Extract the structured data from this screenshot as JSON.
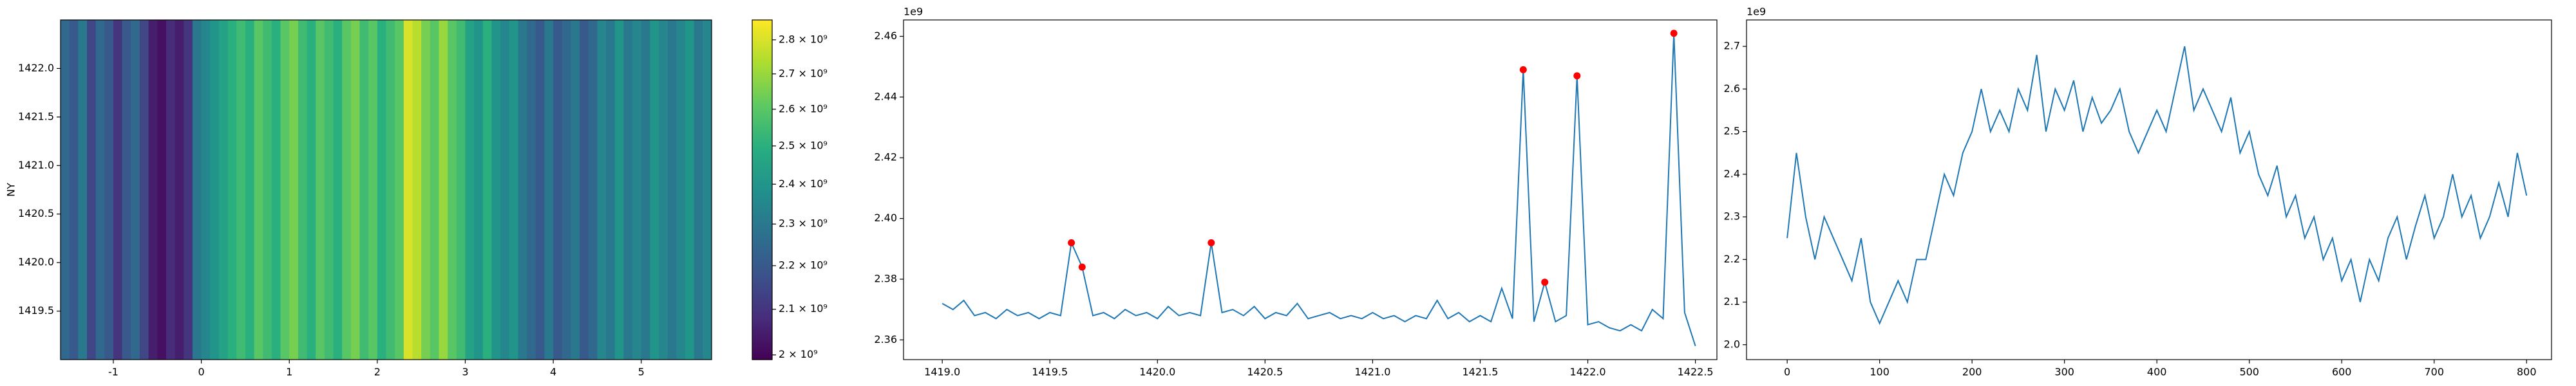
{
  "chart_data": [
    {
      "type": "heatmap",
      "ylabel": "NY",
      "colormap": "viridis",
      "x": [
        -1.55,
        -1.45,
        -1.35,
        -1.25,
        -1.15,
        -1.05,
        -0.95,
        -0.85,
        -0.75,
        -0.65,
        -0.55,
        -0.45,
        -0.35,
        -0.25,
        -0.15,
        -0.05,
        0.05,
        0.15,
        0.25,
        0.35,
        0.45,
        0.55,
        0.65,
        0.75,
        0.85,
        0.95,
        1.05,
        1.15,
        1.25,
        1.35,
        1.45,
        1.55,
        1.65,
        1.75,
        1.85,
        1.95,
        2.05,
        2.15,
        2.25,
        2.35,
        2.45,
        2.55,
        2.65,
        2.75,
        2.85,
        2.95,
        3.05,
        3.15,
        3.25,
        3.35,
        3.45,
        3.55,
        3.65,
        3.75,
        3.85,
        3.95,
        4.05,
        4.15,
        4.25,
        4.35,
        4.45,
        4.55,
        4.65,
        4.75,
        4.85,
        4.95,
        5.05,
        5.15,
        5.25,
        5.35,
        5.45,
        5.55,
        5.65,
        5.75
      ],
      "values": [
        2250000000.0,
        2200000000.0,
        2300000000.0,
        2150000000.0,
        2250000000.0,
        2200000000.0,
        2100000000.0,
        2200000000.0,
        2250000000.0,
        2150000000.0,
        2050000000.0,
        2020000000.0,
        2080000000.0,
        2050000000.0,
        2100000000.0,
        2300000000.0,
        2350000000.0,
        2400000000.0,
        2450000000.0,
        2500000000.0,
        2550000000.0,
        2500000000.0,
        2600000000.0,
        2550000000.0,
        2500000000.0,
        2600000000.0,
        2650000000.0,
        2550000000.0,
        2500000000.0,
        2600000000.0,
        2550000000.0,
        2500000000.0,
        2600000000.0,
        2650000000.0,
        2550000000.0,
        2600000000.0,
        2500000000.0,
        2550000000.0,
        2600000000.0,
        2800000000.0,
        2750000000.0,
        2650000000.0,
        2600000000.0,
        2700000000.0,
        2600000000.0,
        2550000000.0,
        2450000000.0,
        2400000000.0,
        2500000000.0,
        2400000000.0,
        2350000000.0,
        2400000000.0,
        2300000000.0,
        2250000000.0,
        2200000000.0,
        2300000000.0,
        2200000000.0,
        2250000000.0,
        2300000000.0,
        2200000000.0,
        2250000000.0,
        2350000000.0,
        2300000000.0,
        2400000000.0,
        2300000000.0,
        2350000000.0,
        2300000000.0,
        2400000000.0,
        2350000000.0,
        2300000000.0,
        2350000000.0,
        2400000000.0,
        2300000000.0,
        2350000000.0
      ],
      "xlim": [
        -1.6,
        5.8
      ],
      "ylim": [
        1419.0,
        1422.5
      ],
      "xticks": [
        -1,
        0,
        1,
        2,
        3,
        4,
        5
      ],
      "yticks": [
        1419.5,
        {
          "value": 1420,
          "label": "1420.0"
        },
        1420.5,
        {
          "value": 1421,
          "label": "1421.0"
        },
        1421.5,
        {
          "value": 1422,
          "label": "1422.0"
        }
      ],
      "colorbar": {
        "log": true,
        "lim": [
          1990000000.0,
          2860000000.0
        ],
        "ticks": [
          {
            "value": 2000000000.0,
            "label": "2 × 10⁹"
          },
          {
            "value": 2100000000.0,
            "label": "2.1 × 10⁹"
          },
          {
            "value": 2200000000.0,
            "label": "2.2 × 10⁹"
          },
          {
            "value": 2300000000.0,
            "label": "2.3 × 10⁹"
          },
          {
            "value": 2400000000.0,
            "label": "2.4 × 10⁹"
          },
          {
            "value": 2500000000.0,
            "label": "2.5 × 10⁹"
          },
          {
            "value": 2600000000.0,
            "label": "2.6 × 10⁹"
          },
          {
            "value": 2700000000.0,
            "label": "2.7 × 10⁹"
          },
          {
            "value": 2800000000.0,
            "label": "2.8 × 10⁹"
          }
        ]
      }
    },
    {
      "type": "line",
      "offset_text": "1e9",
      "xlim": [
        1418.82,
        1422.6
      ],
      "ylim": [
        2.3535,
        2.4654
      ],
      "xticks": [
        {
          "value": 1419,
          "label": "1419.0"
        },
        1419.5,
        {
          "value": 1420,
          "label": "1420.0"
        },
        1420.5,
        {
          "value": 1421,
          "label": "1421.0"
        },
        1421.5,
        {
          "value": 1422,
          "label": "1422.0"
        },
        1422.5
      ],
      "yticks": [
        2.36,
        2.38,
        {
          "value": 2.4,
          "label": "2.40"
        },
        2.42,
        2.44,
        2.46
      ],
      "series": [
        {
          "type": "line",
          "color": "#1f77b4",
          "x": [
            1419.0,
            1419.05,
            1419.1,
            1419.15,
            1419.2,
            1419.25,
            1419.3,
            1419.35,
            1419.4,
            1419.45,
            1419.5,
            1419.55,
            1419.6,
            1419.65,
            1419.7,
            1419.75,
            1419.8,
            1419.85,
            1419.9,
            1419.95,
            1420.0,
            1420.05,
            1420.1,
            1420.15,
            1420.2,
            1420.25,
            1420.3,
            1420.35,
            1420.4,
            1420.45,
            1420.5,
            1420.55,
            1420.6,
            1420.65,
            1420.7,
            1420.75,
            1420.8,
            1420.85,
            1420.9,
            1420.95,
            1421.0,
            1421.05,
            1421.1,
            1421.15,
            1421.2,
            1421.25,
            1421.3,
            1421.35,
            1421.4,
            1421.45,
            1421.5,
            1421.55,
            1421.6,
            1421.65,
            1421.7,
            1421.75,
            1421.8,
            1421.85,
            1421.9,
            1421.95,
            1422.0,
            1422.05,
            1422.1,
            1422.15,
            1422.2,
            1422.25,
            1422.3,
            1422.35,
            1422.4,
            1422.45,
            1422.5
          ],
          "values": [
            2.372,
            2.37,
            2.373,
            2.368,
            2.369,
            2.367,
            2.37,
            2.368,
            2.369,
            2.367,
            2.369,
            2.368,
            2.392,
            2.384,
            2.368,
            2.369,
            2.367,
            2.37,
            2.368,
            2.369,
            2.367,
            2.371,
            2.368,
            2.369,
            2.368,
            2.392,
            2.369,
            2.37,
            2.368,
            2.371,
            2.367,
            2.369,
            2.368,
            2.372,
            2.367,
            2.368,
            2.369,
            2.367,
            2.368,
            2.367,
            2.369,
            2.367,
            2.368,
            2.366,
            2.368,
            2.367,
            2.373,
            2.367,
            2.369,
            2.366,
            2.368,
            2.366,
            2.377,
            2.367,
            2.449,
            2.366,
            2.379,
            2.366,
            2.368,
            2.447,
            2.365,
            2.366,
            2.364,
            2.363,
            2.365,
            2.363,
            2.37,
            2.367,
            2.461,
            2.369,
            2.358
          ]
        },
        {
          "type": "scatter",
          "color": "#ff0000",
          "x": [
            1419.6,
            1419.65,
            1420.25,
            1421.7,
            1421.8,
            1421.95,
            1422.4
          ],
          "values": [
            2.392,
            2.384,
            2.392,
            2.449,
            2.379,
            2.447,
            2.461
          ]
        }
      ]
    },
    {
      "type": "line",
      "offset_text": "1e9",
      "xlim": [
        -44,
        827
      ],
      "ylim": [
        1.965,
        2.762
      ],
      "xticks": [
        0,
        100,
        200,
        300,
        400,
        500,
        600,
        700,
        800
      ],
      "yticks": [
        {
          "value": 2,
          "label": "2.0"
        },
        2.1,
        2.2,
        2.3,
        2.4,
        2.5,
        2.6,
        2.7
      ],
      "series": [
        {
          "type": "line",
          "color": "#1f77b4",
          "x": [
            0,
            10,
            20,
            30,
            40,
            50,
            60,
            70,
            80,
            90,
            100,
            110,
            120,
            130,
            140,
            150,
            160,
            170,
            180,
            190,
            200,
            210,
            220,
            230,
            240,
            250,
            260,
            270,
            280,
            290,
            300,
            310,
            320,
            330,
            340,
            350,
            360,
            370,
            380,
            390,
            400,
            410,
            420,
            430,
            440,
            450,
            460,
            470,
            480,
            490,
            500,
            510,
            520,
            530,
            540,
            550,
            560,
            570,
            580,
            590,
            600,
            610,
            620,
            630,
            640,
            650,
            660,
            670,
            680,
            690,
            700,
            710,
            720,
            730,
            740,
            750,
            760,
            770,
            780,
            790,
            800
          ],
          "values": [
            2.25,
            2.45,
            2.3,
            2.2,
            2.3,
            2.25,
            2.2,
            2.15,
            2.25,
            2.1,
            2.05,
            2.1,
            2.15,
            2.1,
            2.2,
            2.2,
            2.3,
            2.4,
            2.35,
            2.45,
            2.5,
            2.6,
            2.5,
            2.55,
            2.5,
            2.6,
            2.55,
            2.68,
            2.5,
            2.6,
            2.55,
            2.62,
            2.5,
            2.58,
            2.52,
            2.55,
            2.6,
            2.5,
            2.45,
            2.5,
            2.55,
            2.5,
            2.6,
            2.7,
            2.55,
            2.6,
            2.55,
            2.5,
            2.58,
            2.45,
            2.5,
            2.4,
            2.35,
            2.42,
            2.3,
            2.35,
            2.25,
            2.3,
            2.2,
            2.25,
            2.15,
            2.2,
            2.1,
            2.2,
            2.15,
            2.25,
            2.3,
            2.2,
            2.28,
            2.35,
            2.25,
            2.3,
            2.4,
            2.3,
            2.35,
            2.25,
            2.3,
            2.38,
            2.3,
            2.45,
            2.35
          ]
        }
      ]
    }
  ]
}
